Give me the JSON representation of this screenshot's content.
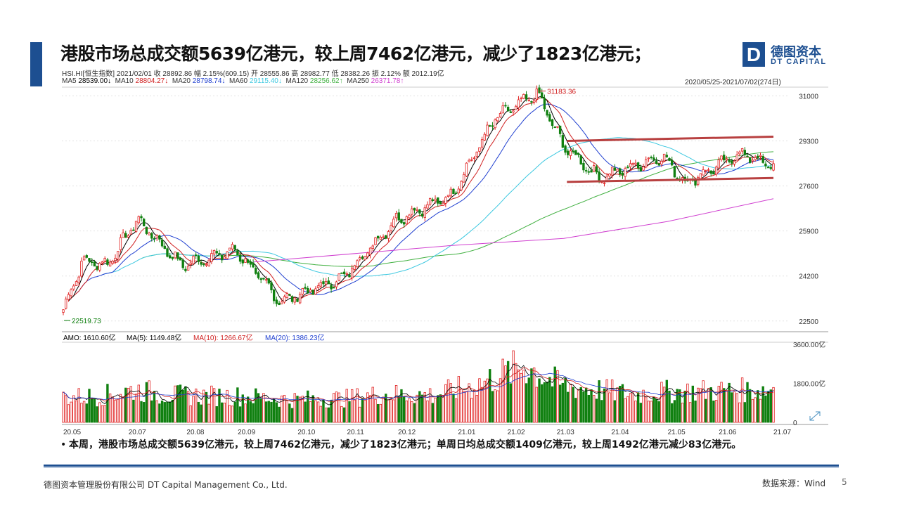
{
  "slide": {
    "title": "港股市场总成交额5639亿港元，较上周7462亿港元，减少了1823亿港元；",
    "bullet": "本周，港股市场总成交额5639亿港元，较上周7462亿港元，减少了1823亿港元；单周日均总成交额1409亿港元，较上周1492亿港元减少83亿港元。",
    "bullet_dot": "•",
    "footer_company": "德图资本管理股份有限公司  DT Capital  Management  Co., Ltd.",
    "footer_source": "数据来源：Wind",
    "page_number": "5",
    "accent_color": "#1d4f91"
  },
  "logo": {
    "mark": "D",
    "cn": "德图资本",
    "en": "DT CAPITAL"
  },
  "info": {
    "line1": "HSI.HI[恒生指数]    2021/02/01  收 28892.86  幅 2.15%(609.15)  开 28555.86  高 28982.77  低 28382.26  振 2.12%  额 2012.19亿",
    "ma_labels": [
      "MA5",
      "MA10",
      "MA20",
      "MA60",
      "MA120",
      "MA250"
    ],
    "ma_values": [
      "28539.00↓",
      "28804.27↓",
      "28798.74↓",
      "29115.40↓",
      "28256.62↑",
      "26371.78↑"
    ],
    "ma_colors": [
      "#000000",
      "#d02020",
      "#1f3fd0",
      "#3cc8e0",
      "#40b040",
      "#d040d0"
    ],
    "date_range": "2020/05/25-2021/07/02(274日)"
  },
  "chart_data": [
    {
      "type": "candlestick",
      "title": "HSI.HI[恒生指数]",
      "x_labels": [
        "20.05",
        "20.07",
        "20.08",
        "20.09",
        "20.10",
        "20.11",
        "20.12",
        "21.01",
        "21.02",
        "21.03",
        "21.04",
        "21.05",
        "21.06",
        "21.07"
      ],
      "y_ticks": [
        31000,
        29300,
        27600,
        25900,
        24200,
        22500
      ],
      "ylim": [
        22150,
        31250
      ],
      "annotations": {
        "high": "31183.36",
        "low": "22519.73"
      },
      "key_closes": [
        {
          "date": "2020/05/25",
          "value": 22930
        },
        {
          "date": "2020/06/05",
          "value": 24770
        },
        {
          "date": "2020/06/19",
          "value": 24640
        },
        {
          "date": "2020/07/06",
          "value": 26340
        },
        {
          "date": "2020/07/31",
          "value": 24600
        },
        {
          "date": "2020/08/31",
          "value": 25180
        },
        {
          "date": "2020/09/25",
          "value": 23230
        },
        {
          "date": "2020/10/30",
          "value": 24100
        },
        {
          "date": "2020/11/30",
          "value": 26340
        },
        {
          "date": "2020/12/31",
          "value": 27230
        },
        {
          "date": "2021/01/25",
          "value": 30160
        },
        {
          "date": "2021/02/18",
          "value": 31080
        },
        {
          "date": "2021/03/05",
          "value": 29100
        },
        {
          "date": "2021/03/25",
          "value": 27900
        },
        {
          "date": "2021/04/30",
          "value": 28720
        },
        {
          "date": "2021/05/13",
          "value": 27720
        },
        {
          "date": "2021/06/14",
          "value": 28840
        },
        {
          "date": "2021/07/02",
          "value": 28310
        }
      ],
      "ma250_series": [
        {
          "date": "2020/09/10",
          "value": 24730
        },
        {
          "date": "2020/12/31",
          "value": 25350
        },
        {
          "date": "2021/03/05",
          "value": 25620
        },
        {
          "date": "2021/05/03",
          "value": 26260
        },
        {
          "date": "2021/07/02",
          "value": 27120
        }
      ],
      "channel_lines": [
        {
          "name": "resistance",
          "from": {
            "date": "2021/03/10",
            "value": 29300
          },
          "to": {
            "date": "2021/07/02",
            "value": 29460
          }
        },
        {
          "name": "support",
          "from": {
            "date": "2021/03/10",
            "value": 27750
          },
          "to": {
            "date": "2021/07/02",
            "value": 27900
          }
        }
      ],
      "channel_color": "#b84040",
      "up_color": "#e02020",
      "down_color": "#108010"
    },
    {
      "type": "bar",
      "title": "AMO",
      "legend": [
        {
          "label": "AMO: 1610.60亿",
          "color": "#000000"
        },
        {
          "label": "MA(5): 1149.48亿",
          "color": "#000000"
        },
        {
          "label": "MA(10): 1266.67亿",
          "color": "#d02020"
        },
        {
          "label": "MA(20): 1386.23亿",
          "color": "#1f3fd0"
        }
      ],
      "y_ticks": [
        "3600.00亿",
        "1800.00亿",
        "0"
      ],
      "ylim": [
        0,
        3600
      ],
      "level_points": [
        {
          "x": 0.0,
          "value": 1150
        },
        {
          "x": 0.05,
          "value": 1200
        },
        {
          "x": 0.1,
          "value": 1500
        },
        {
          "x": 0.15,
          "value": 1250
        },
        {
          "x": 0.25,
          "value": 1200
        },
        {
          "x": 0.32,
          "value": 1050
        },
        {
          "x": 0.4,
          "value": 1100
        },
        {
          "x": 0.45,
          "value": 1300
        },
        {
          "x": 0.52,
          "value": 1250
        },
        {
          "x": 0.58,
          "value": 1700
        },
        {
          "x": 0.65,
          "value": 2600
        },
        {
          "x": 0.7,
          "value": 1700
        },
        {
          "x": 0.75,
          "value": 1500
        },
        {
          "x": 0.8,
          "value": 1300
        },
        {
          "x": 0.85,
          "value": 1400
        },
        {
          "x": 0.92,
          "value": 1450
        },
        {
          "x": 1.0,
          "value": 1500
        }
      ],
      "last_bar": 1610.6
    }
  ]
}
